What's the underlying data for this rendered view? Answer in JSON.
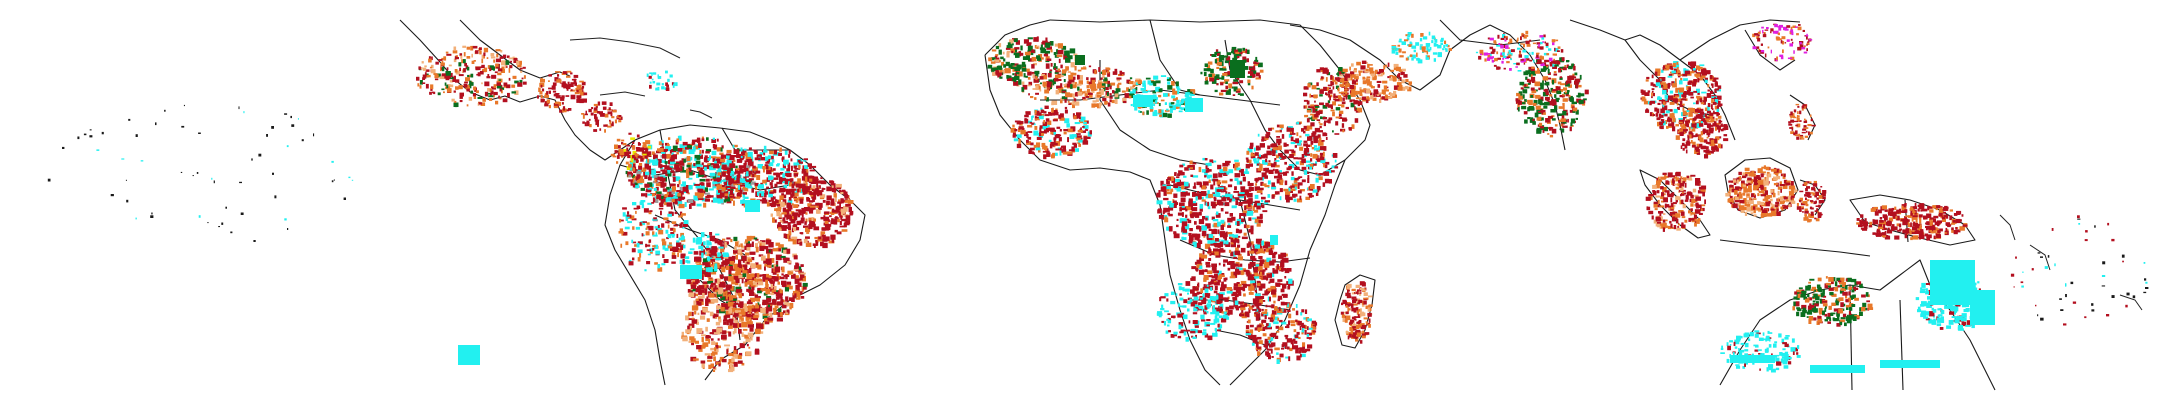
{
  "map": {
    "projection": "equirectangular",
    "extent": "tropics",
    "categories": [
      {
        "id": "cat_red",
        "color": "#b30f1f"
      },
      {
        "id": "cat_orange",
        "color": "#e8782a"
      },
      {
        "id": "cat_peach",
        "color": "#f2b07a"
      },
      {
        "id": "cat_green",
        "color": "#0a6e1e"
      },
      {
        "id": "cat_cyan",
        "color": "#22f0f0"
      },
      {
        "id": "cat_magenta",
        "color": "#e020e0"
      },
      {
        "id": "cat_gray",
        "color": "#9a9a9a"
      },
      {
        "id": "cat_yellow",
        "color": "#e8e800"
      },
      {
        "id": "cat_black",
        "color": "#1a1a1a"
      }
    ],
    "regions": [
      "central-america",
      "caribbean",
      "south-america",
      "africa",
      "madagascar",
      "arabia",
      "south-asia",
      "southeast-asia",
      "maritime-southeast-asia",
      "new-guinea",
      "northern-australia",
      "pacific-islands"
    ]
  }
}
